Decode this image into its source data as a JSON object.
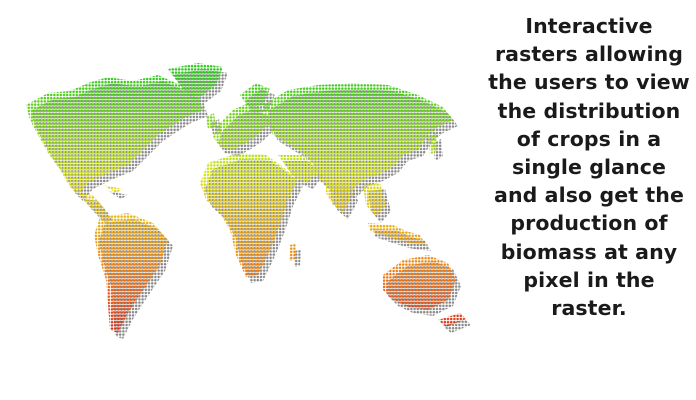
{
  "caption": {
    "text": "Interactive rasters allowing the users to view the distribution of crops in a single glance and also get the production of biomass at any pixel in the raster."
  },
  "map": {
    "icon": "dotted-world-map",
    "gradient_colors": {
      "north": "#2ec81e",
      "mid": "#d6e21a",
      "south": "#f08a18",
      "far_south": "#d8281a"
    },
    "shadow_color": "#8a8a8a"
  }
}
